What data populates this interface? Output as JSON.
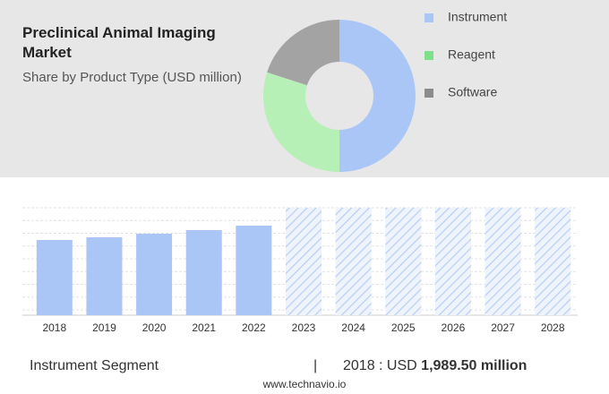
{
  "chart_data": [
    {
      "type": "pie",
      "title": "Preclinical Animal Imaging Market",
      "subtitle": "Share by Product Type (USD million)",
      "categories": [
        "Instrument",
        "Reagent",
        "Software"
      ],
      "values": [
        50,
        30,
        20
      ],
      "colors": [
        "#a9c6f7",
        "#b6f0b6",
        "#a3a3a3"
      ],
      "legend_colors": [
        "#a9c6f7",
        "#7fe08c",
        "#8c8c8c"
      ]
    },
    {
      "type": "bar",
      "categories": [
        "2018",
        "2019",
        "2020",
        "2021",
        "2022",
        "2023",
        "2024",
        "2025",
        "2026",
        "2027",
        "2028"
      ],
      "values": [
        1989.5,
        2060,
        2155,
        2250,
        2368,
        null,
        null,
        null,
        null,
        null,
        null
      ],
      "color": "#a9c6f7",
      "ylim": [
        0,
        2842
      ]
    }
  ],
  "footer": {
    "segment": "Instrument Segment",
    "separator": "|",
    "year_label": "2018 : USD",
    "value_label": "1,989.50 million"
  },
  "source": "www.technavio.io"
}
